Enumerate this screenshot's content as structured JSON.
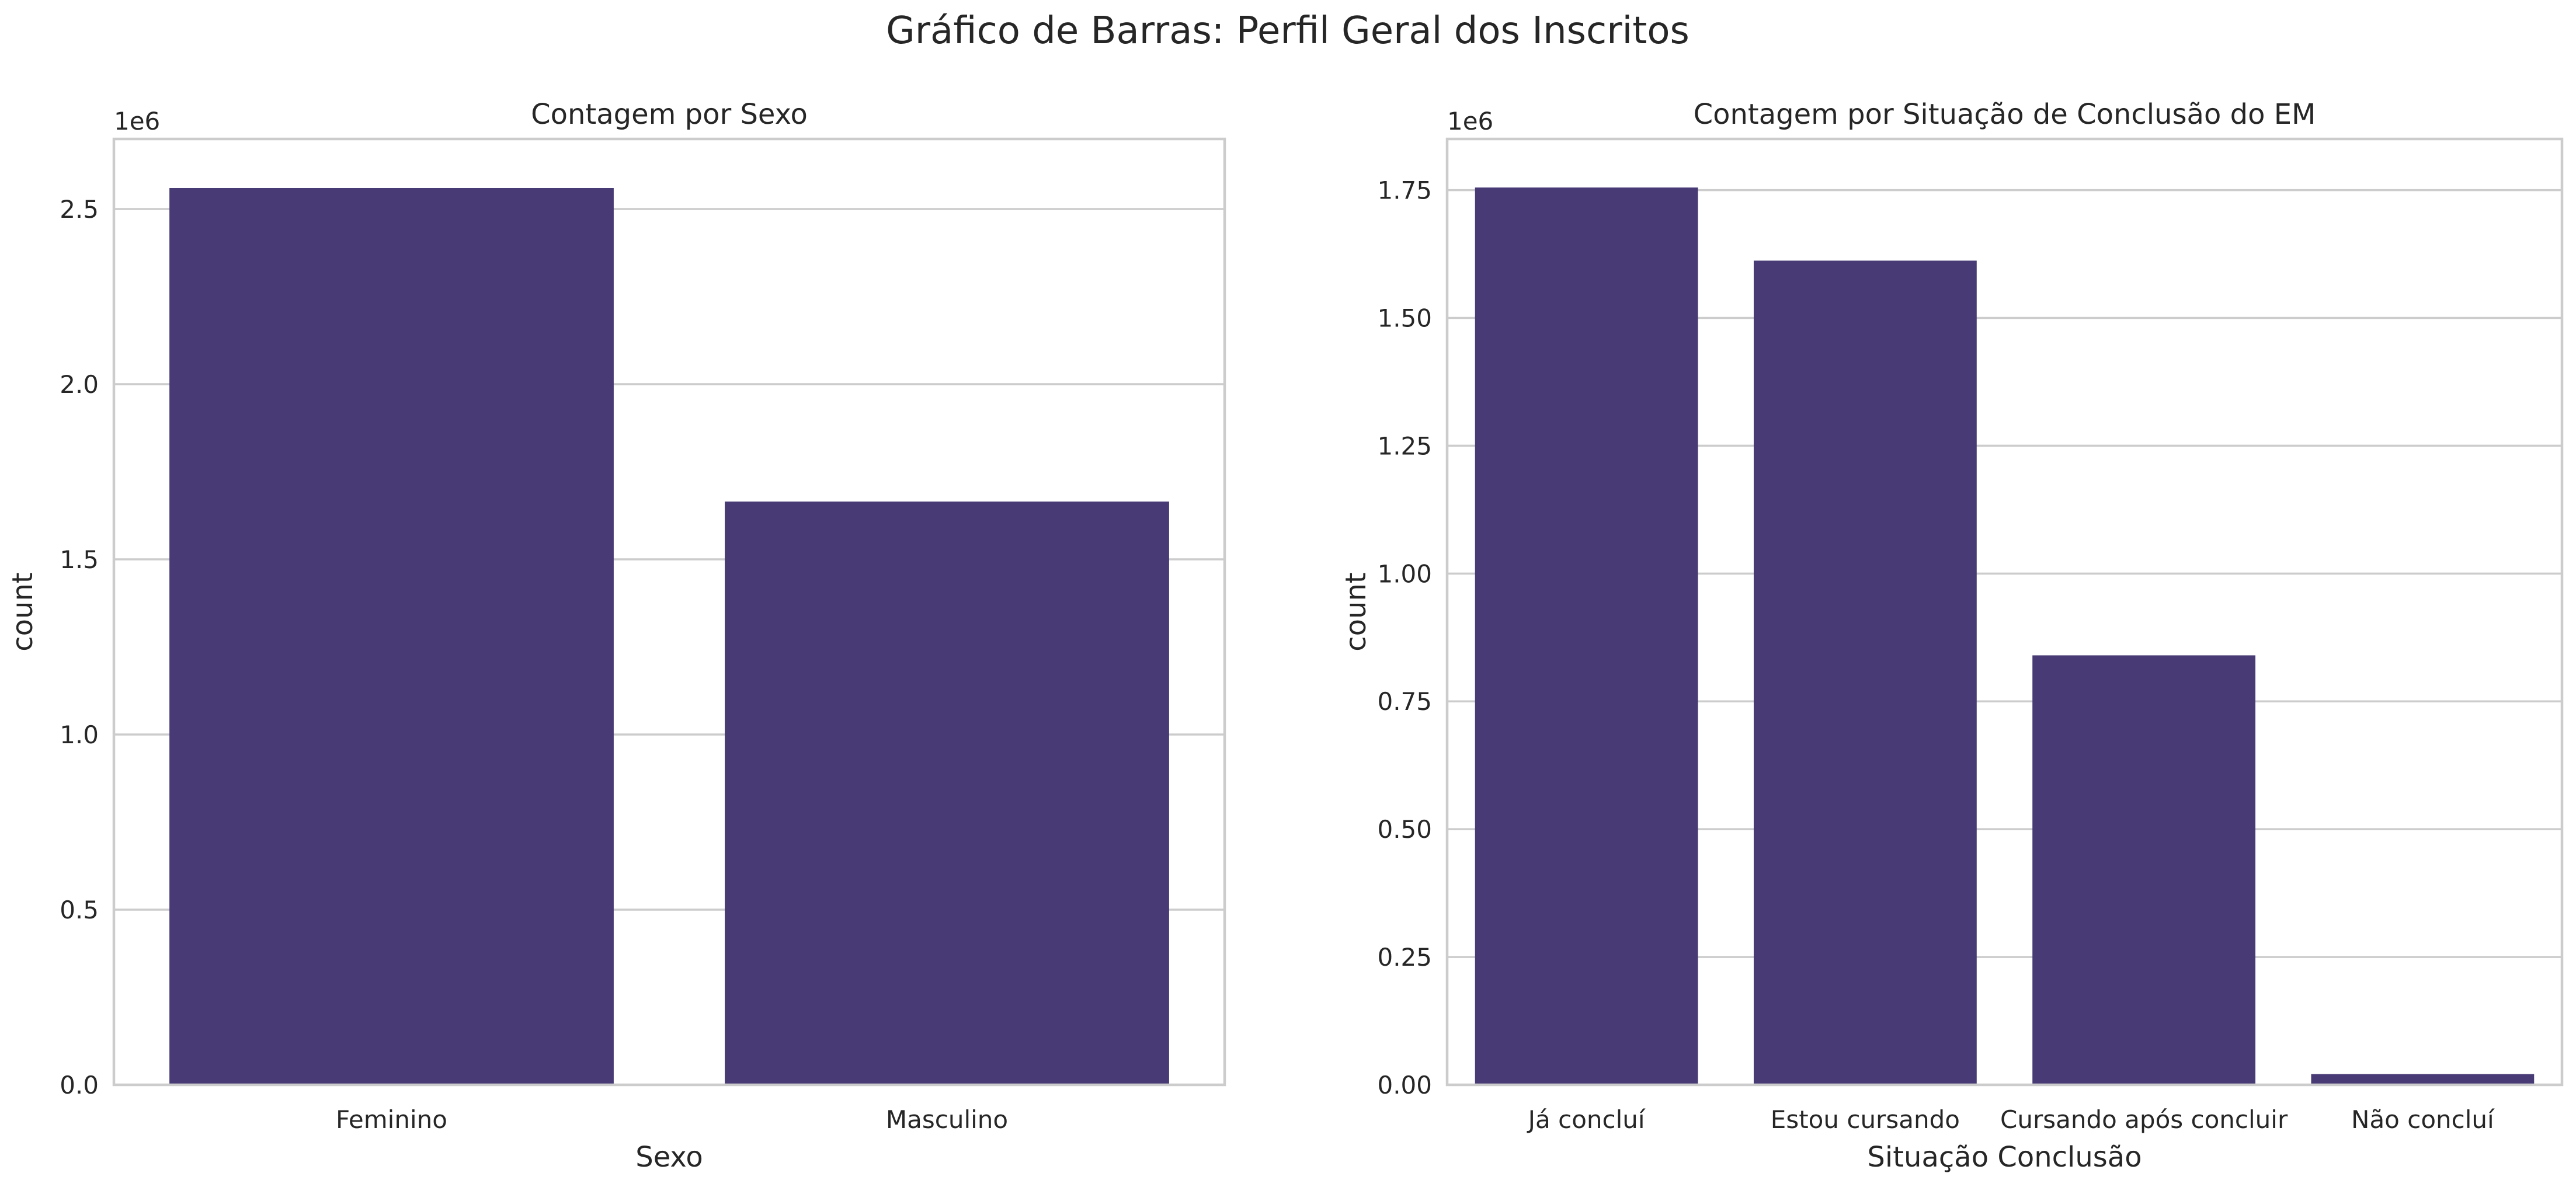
{
  "figure": {
    "title": "Gráfico de Barras: Perfil Geral dos Inscritos"
  },
  "colors": {
    "bar": "#483a75",
    "grid": "#cccccc",
    "background": "#ffffff",
    "text": "#262626"
  },
  "chart_data": [
    {
      "type": "bar",
      "title": "Contagem por Sexo",
      "xlabel": "Sexo",
      "ylabel": "count",
      "offset_label": "1e6",
      "categories": [
        "Feminino",
        "Masculino"
      ],
      "values": [
        2560000,
        1665000
      ],
      "ylim": [
        0,
        2700000
      ],
      "yticks": [
        0,
        500000,
        1000000,
        1500000,
        2000000,
        2500000
      ],
      "ytick_labels": [
        "0.0",
        "0.5",
        "1.0",
        "1.5",
        "2.0",
        "2.5"
      ],
      "grid": "horizontal",
      "legend": "none"
    },
    {
      "type": "bar",
      "title": "Contagem por Situação de Conclusão do EM",
      "xlabel": "Situação Conclusão",
      "ylabel": "count",
      "offset_label": "1e6",
      "categories": [
        "Já concluí",
        "Estou cursando",
        "Cursando após concluir",
        "Não concluí"
      ],
      "values": [
        1755000,
        1612000,
        840000,
        21000
      ],
      "ylim": [
        0,
        1850000
      ],
      "yticks": [
        0,
        250000,
        500000,
        750000,
        1000000,
        1250000,
        1500000,
        1750000
      ],
      "ytick_labels": [
        "0.00",
        "0.25",
        "0.50",
        "0.75",
        "1.00",
        "1.25",
        "1.50",
        "1.75"
      ],
      "grid": "horizontal",
      "legend": "none"
    }
  ]
}
